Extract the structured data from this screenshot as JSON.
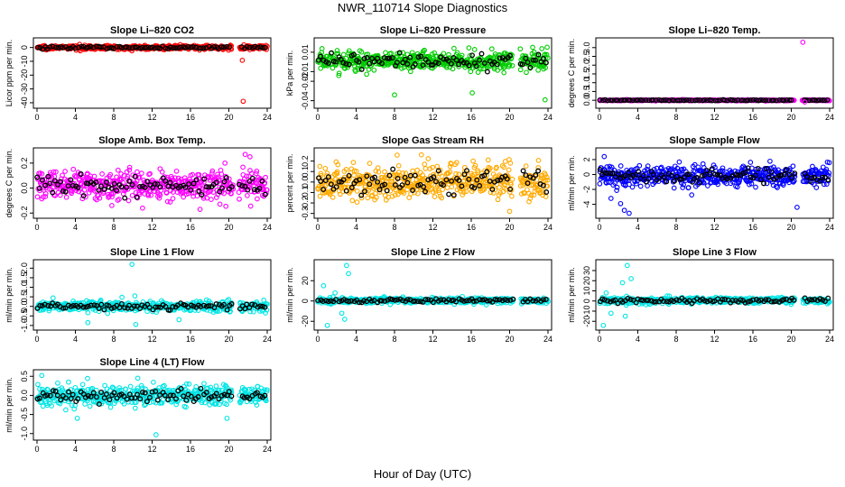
{
  "figure": {
    "title": "NWR_110714  Slope Diagnostics",
    "xlabel": "Hour of Day (UTC)"
  },
  "chart_data": [
    {
      "type": "scatter",
      "title": "Slope Li–820 CO2",
      "ylabel": "Licor ppm per min.",
      "color": "#ff0000",
      "xlim": [
        0,
        24
      ],
      "xticks": [
        "0",
        "4",
        "8",
        "12",
        "16",
        "20",
        "24"
      ],
      "ylim": [
        -42,
        5
      ],
      "yticks": [
        {
          "v": 0,
          "label": "0"
        },
        {
          "v": -10,
          "label": "-10"
        },
        {
          "v": -20,
          "label": "-20"
        },
        {
          "v": -30,
          "label": "-30"
        },
        {
          "v": -40,
          "label": "-40"
        }
      ],
      "noise": 0.7,
      "base": 0,
      "gap": [
        20.3,
        21.1
      ],
      "outliers": [
        [
          21.4,
          -9.3
        ],
        [
          21.5,
          -38.9
        ]
      ]
    },
    {
      "type": "scatter",
      "title": "Slope Li–820 Pressure",
      "ylabel": "kPa per min.",
      "color": "#00cc00",
      "xlim": [
        0,
        24
      ],
      "xticks": [
        "0",
        "4",
        "8",
        "12",
        "16",
        "20",
        "24"
      ],
      "ylim": [
        -0.045,
        0.022
      ],
      "yticks": [
        {
          "v": 0.01,
          "label": "0.01"
        },
        {
          "v": -0.01,
          "label": "-0.01"
        },
        {
          "v": -0.02,
          "label": "-0.02"
        },
        {
          "v": -0.04,
          "label": "-0.04"
        }
      ],
      "noise": 0.005,
      "base": 0.001,
      "gap": [
        20.3,
        21.1
      ],
      "outliers": [
        [
          8.0,
          -0.034
        ],
        [
          16.1,
          -0.032
        ],
        [
          22.4,
          0.015
        ],
        [
          23.7,
          -0.039
        ],
        [
          14.2,
          0.014
        ],
        [
          11.0,
          0.011
        ]
      ]
    },
    {
      "type": "scatter",
      "title": "Slope Li–820 Temp.",
      "ylabel": "degrees C per min.",
      "color": "#ff00ff",
      "xlim": [
        0,
        24
      ],
      "xticks": [
        "0",
        "4",
        "8",
        "12",
        "16",
        "20",
        "24"
      ],
      "ylim": [
        -0.3,
        3.4
      ],
      "yticks": [
        {
          "v": 0.0,
          "label": "0.0"
        },
        {
          "v": 0.5,
          "label": "0.5"
        },
        {
          "v": 1.0,
          "label": "1.0"
        },
        {
          "v": 1.5,
          "label": "1.5"
        },
        {
          "v": 2.0,
          "label": "2.0"
        },
        {
          "v": 2.5,
          "label": "2.5"
        },
        {
          "v": 3.0,
          "label": "3.0"
        }
      ],
      "noise": 0.015,
      "base": 0.0,
      "gap": [
        20.3,
        21.1
      ],
      "outliers": [
        [
          21.2,
          3.3
        ],
        [
          21.4,
          -0.1
        ]
      ]
    },
    {
      "type": "scatter",
      "title": "Slope Amb. Box Temp.",
      "ylabel": "degrees C per min.",
      "color": "#ff00ff",
      "xlim": [
        0,
        24
      ],
      "xticks": [
        "0",
        "4",
        "8",
        "12",
        "16",
        "20",
        "24"
      ],
      "ylim": [
        -0.22,
        0.3
      ],
      "yticks": [
        {
          "v": 0.2,
          "label": "0.2"
        },
        {
          "v": 0.0,
          "label": "0.0"
        },
        {
          "v": -0.2,
          "label": "-0.2"
        }
      ],
      "noise": 0.055,
      "base": 0.02,
      "gap": [
        20.5,
        21.0
      ],
      "outliers": [
        [
          21.7,
          0.27
        ],
        [
          22.2,
          0.25
        ],
        [
          11.0,
          -0.16
        ],
        [
          7.8,
          -0.14
        ],
        [
          17.0,
          -0.17
        ]
      ]
    },
    {
      "type": "scatter",
      "title": "Slope Gas Stream RH",
      "ylabel": "percent per min.",
      "color": "#ffaa00",
      "xlim": [
        0,
        24
      ],
      "xticks": [
        "0",
        "4",
        "8",
        "12",
        "16",
        "20",
        "24"
      ],
      "ylim": [
        -0.32,
        0.3
      ],
      "yticks": [
        {
          "v": 0.2,
          "label": "0.2"
        },
        {
          "v": 0.1,
          "label": "0.1"
        },
        {
          "v": 0.0,
          "label": "0.0"
        },
        {
          "v": -0.1,
          "label": "-0.1"
        },
        {
          "v": -0.2,
          "label": "-0.2"
        },
        {
          "v": -0.3,
          "label": "-0.3"
        }
      ],
      "noise": 0.08,
      "base": 0.0,
      "gap": [
        20.3,
        21.1
      ],
      "outliers": [
        [
          10.8,
          0.26
        ],
        [
          20.0,
          -0.28
        ],
        [
          16.2,
          0.2
        ]
      ]
    },
    {
      "type": "scatter",
      "title": "Slope Sample Flow",
      "ylabel": "ml/min per min.",
      "color": "#0000ff",
      "xlim": [
        0,
        24
      ],
      "xticks": [
        "0",
        "4",
        "8",
        "12",
        "16",
        "20",
        "24"
      ],
      "ylim": [
        -5.5,
        3.2
      ],
      "yticks": [
        {
          "v": 2,
          "label": "2"
        },
        {
          "v": 0,
          "label": "0"
        },
        {
          "v": -2,
          "label": "-2"
        },
        {
          "v": -4,
          "label": "-4"
        }
      ],
      "noise": 0.7,
      "base": -0.2,
      "gap": [
        20.4,
        21.2
      ],
      "outliers": [
        [
          0.5,
          2.4
        ],
        [
          2.6,
          -4.8
        ],
        [
          3.1,
          -5.2
        ],
        [
          20.6,
          -4.4
        ],
        [
          1.2,
          -3.2
        ],
        [
          2.2,
          -3.9
        ]
      ]
    },
    {
      "type": "scatter",
      "title": "Slope Line 1 Flow",
      "ylabel": "ml/min per min.",
      "color": "#00e5e5",
      "xlim": [
        0,
        24
      ],
      "xticks": [
        "0",
        "4",
        "8",
        "12",
        "16",
        "20",
        "24"
      ],
      "ylim": [
        -1.1,
        2.3
      ],
      "yticks": [
        {
          "v": 2.0,
          "label": "2.0"
        },
        {
          "v": 1.5,
          "label": "1.5"
        },
        {
          "v": 1.0,
          "label": "1.0"
        },
        {
          "v": 0.5,
          "label": "0.5"
        },
        {
          "v": 0.0,
          "label": "0.0"
        },
        {
          "v": -0.5,
          "label": "-0.5"
        },
        {
          "v": -1.0,
          "label": "-1.0"
        }
      ],
      "noise": 0.12,
      "base": 0.0,
      "gap": [
        20.3,
        21.1
      ],
      "outliers": [
        [
          9.9,
          2.2
        ],
        [
          10.2,
          0.55
        ],
        [
          5.3,
          -0.85
        ],
        [
          10.3,
          -0.95
        ],
        [
          14.8,
          -0.7
        ]
      ]
    },
    {
      "type": "scatter",
      "title": "Slope Line 2 Flow",
      "ylabel": "ml/min per min.",
      "color": "#00e5e5",
      "xlim": [
        0,
        24
      ],
      "xticks": [
        "0",
        "4",
        "8",
        "12",
        "16",
        "20",
        "24"
      ],
      "ylim": [
        -26,
        38
      ],
      "yticks": [
        {
          "v": 20,
          "label": "20"
        },
        {
          "v": 0,
          "label": "0"
        },
        {
          "v": -20,
          "label": "-20"
        }
      ],
      "noise": 1.3,
      "base": 0.5,
      "gap": [
        20.4,
        21.2
      ],
      "outliers": [
        [
          0.6,
          15
        ],
        [
          1.0,
          -24
        ],
        [
          2.5,
          -12
        ],
        [
          3.0,
          35
        ],
        [
          3.2,
          27
        ],
        [
          2.8,
          -18
        ],
        [
          1.8,
          8
        ]
      ]
    },
    {
      "type": "scatter",
      "title": "Slope Line 3 Flow",
      "ylabel": "ml/min per min.",
      "color": "#00e5e5",
      "xlim": [
        0,
        24
      ],
      "xticks": [
        "0",
        "4",
        "8",
        "12",
        "16",
        "20",
        "24"
      ],
      "ylim": [
        -26,
        38
      ],
      "yticks": [
        {
          "v": 30,
          "label": "30"
        },
        {
          "v": 20,
          "label": "20"
        },
        {
          "v": 10,
          "label": "10"
        },
        {
          "v": 0,
          "label": "0"
        },
        {
          "v": -10,
          "label": "-10"
        },
        {
          "v": -20,
          "label": "-20"
        }
      ],
      "noise": 1.5,
      "base": 0.5,
      "gap": [
        20.4,
        21.2
      ],
      "outliers": [
        [
          0.4,
          -24
        ],
        [
          0.7,
          8
        ],
        [
          1.2,
          -12
        ],
        [
          2.4,
          18
        ],
        [
          2.9,
          35
        ],
        [
          3.3,
          22
        ],
        [
          2.7,
          -15
        ]
      ]
    },
    {
      "type": "scatter",
      "title": "Slope Line 4 (LT) Flow",
      "ylabel": "ml/min per min.",
      "color": "#00e5e5",
      "xlim": [
        0,
        24
      ],
      "xticks": [
        "0",
        "4",
        "8",
        "12",
        "16",
        "20",
        "24"
      ],
      "ylim": [
        -1.1,
        0.6
      ],
      "yticks": [
        {
          "v": 0.5,
          "label": "0.5"
        },
        {
          "v": 0.0,
          "label": "0.0"
        },
        {
          "v": -0.5,
          "label": "-0.5"
        },
        {
          "v": -1.0,
          "label": "-1.0"
        }
      ],
      "noise": 0.13,
      "base": 0.0,
      "gap": [
        20.3,
        21.1
      ],
      "outliers": [
        [
          0.5,
          0.52
        ],
        [
          4.2,
          -0.6
        ],
        [
          12.4,
          -1.03
        ],
        [
          19.8,
          -0.6
        ],
        [
          3.0,
          -0.38
        ],
        [
          10.5,
          0.45
        ]
      ]
    }
  ]
}
